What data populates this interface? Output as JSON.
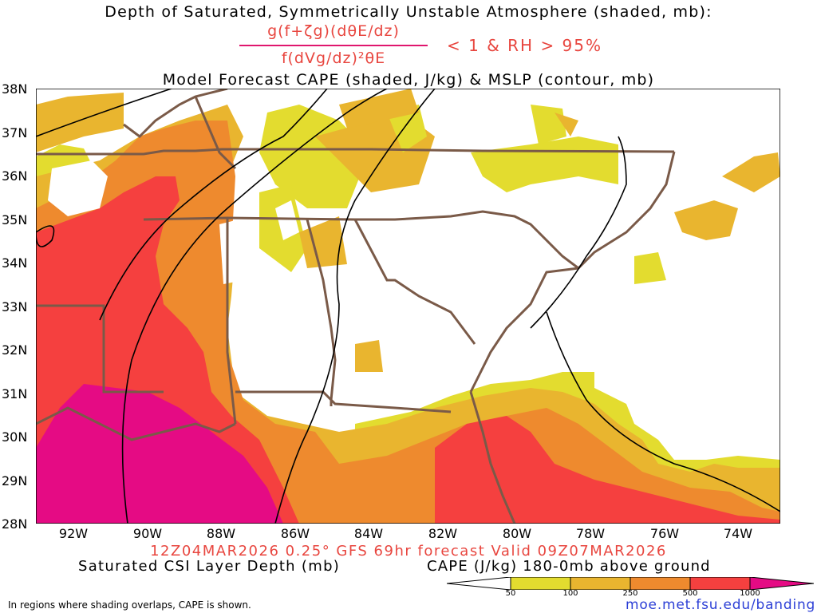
{
  "header": {
    "title_line1": "Depth of Saturated, Symmetrically Unstable Atmosphere (shaded, mb):",
    "formula_numerator": "g(f+ζg)(dθE/dz)",
    "formula_denominator": "f(dVg/dz)²θE",
    "condition": "< 1 & RH > 95%",
    "title_line3": "Model Forecast CAPE (shaded, J/kg) & MSLP (contour, mb)"
  },
  "axes": {
    "lat_labels": [
      "38N",
      "37N",
      "36N",
      "35N",
      "34N",
      "33N",
      "32N",
      "31N",
      "30N",
      "29N",
      "28N"
    ],
    "lon_labels": [
      "92W",
      "90W",
      "88W",
      "86W",
      "84W",
      "82W",
      "80W",
      "78W",
      "76W",
      "74W"
    ]
  },
  "footer": {
    "valid_line": "12Z04MAR2026 0.25° GFS 69hr forecast Valid 09Z07MAR2026",
    "legend_left": "Saturated CSI Layer Depth (mb)",
    "legend_right": "CAPE (J/kg) 180-0mb above ground",
    "colorbar_ticks": [
      "50",
      "100",
      "250",
      "500",
      "1000"
    ],
    "note": "In regions where shading overlaps, CAPE is shown.",
    "url": "moe.met.fsu.edu/banding"
  },
  "colors": {
    "cape_50": "#e3dc2f",
    "cape_100": "#e9b52f",
    "cape_250": "#ee8a2e",
    "cape_500": "#f5403f",
    "cape_1000": "#e50b84",
    "boundaries": "#7a5a48",
    "isobars": "#000000",
    "accent_red": "#e8463f",
    "url_blue": "#2c3fd6"
  }
}
